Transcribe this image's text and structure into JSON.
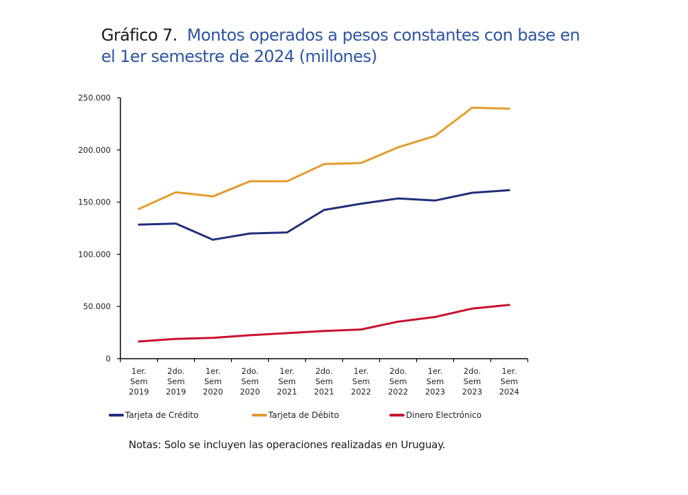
{
  "title": {
    "prefix": "Gráfico 7.",
    "text": "Montos operados a pesos constantes con base en el 1er semestre de 2024 (millones)"
  },
  "note": "Notas: Solo se incluyen las operaciones realizadas en Uruguay.",
  "chart_data": {
    "type": "line",
    "title": "Gráfico 7. Montos operados a pesos constantes con base en el 1er semestre de 2024 (millones)",
    "xlabel": "",
    "ylabel": "",
    "categories": [
      [
        "1er.",
        "Sem",
        "2019"
      ],
      [
        "2do.",
        "Sem",
        "2019"
      ],
      [
        "1er.",
        "Sem",
        "2020"
      ],
      [
        "2do.",
        "Sem",
        "2020"
      ],
      [
        "1er.",
        "Sem",
        "2021"
      ],
      [
        "2do.",
        "Sem",
        "2021"
      ],
      [
        "1er.",
        "Sem",
        "2022"
      ],
      [
        "2do.",
        "Sem",
        "2022"
      ],
      [
        "1er.",
        "Sem",
        "2023"
      ],
      [
        "2do.",
        "Sem",
        "2023"
      ],
      [
        "1er.",
        "Sem",
        "2024"
      ]
    ],
    "ylim": [
      0,
      250000
    ],
    "yticks": [
      0,
      50000,
      100000,
      150000,
      200000,
      250000
    ],
    "ytick_labels": [
      "0",
      "50.000",
      "100.000",
      "150.000",
      "200.000",
      "250.000"
    ],
    "grid": false,
    "legend_position": "bottom",
    "series": [
      {
        "name": "Tarjeta de Crédito",
        "color": "#1f2f7a",
        "values": [
          128500,
          129500,
          114000,
          120000,
          121000,
          142500,
          148500,
          153500,
          151500,
          159000,
          161500
        ]
      },
      {
        "name": "Tarjeta de Débito",
        "color": "#e39b2d",
        "values": [
          143500,
          159500,
          155500,
          170000,
          170000,
          186500,
          187500,
          202500,
          213500,
          240500,
          239500
        ]
      },
      {
        "name": "Dinero Electrónico",
        "color": "#c8102e",
        "values": [
          16500,
          19000,
          20000,
          22500,
          24500,
          26500,
          28000,
          35500,
          40000,
          48000,
          51500
        ]
      }
    ]
  }
}
